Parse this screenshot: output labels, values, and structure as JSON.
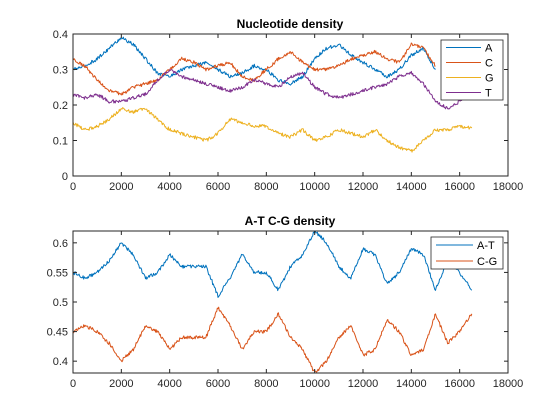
{
  "chart_data": [
    {
      "type": "line",
      "title": "Nucleotide density",
      "xlabel": "",
      "ylabel": "",
      "xlim": [
        0,
        18000
      ],
      "ylim": [
        0,
        0.4
      ],
      "xticks": [
        0,
        2000,
        4000,
        6000,
        8000,
        10000,
        12000,
        14000,
        16000,
        18000
      ],
      "yticks": [
        0,
        0.1,
        0.2,
        0.3,
        0.4
      ],
      "xtick_labels": [
        "0",
        "2000",
        "4000",
        "6000",
        "8000",
        "10000",
        "12000",
        "14000",
        "16000",
        "18000"
      ],
      "ytick_labels": [
        "0",
        "0.1",
        "0.2",
        "0.3",
        "0.4"
      ],
      "grid": false,
      "legend": "top-right",
      "x": [
        0,
        500,
        1000,
        1500,
        2000,
        2500,
        3000,
        3500,
        4000,
        4500,
        5000,
        5500,
        6000,
        6500,
        7000,
        7500,
        8000,
        8500,
        9000,
        9500,
        10000,
        10500,
        11000,
        11500,
        12000,
        12500,
        13000,
        13500,
        14000,
        14500,
        15000,
        15500,
        16000,
        16500
      ],
      "series": [
        {
          "name": "A",
          "color": "#0072BD",
          "values": [
            0.3,
            0.31,
            0.33,
            0.36,
            0.39,
            0.37,
            0.33,
            0.29,
            0.28,
            0.3,
            0.31,
            0.32,
            0.3,
            0.28,
            0.29,
            0.31,
            0.3,
            0.27,
            0.26,
            0.28,
            0.33,
            0.36,
            0.37,
            0.34,
            0.32,
            0.3,
            0.28,
            0.3,
            0.34,
            0.36,
            0.3,
            null,
            null,
            null
          ]
        },
        {
          "name": "C",
          "color": "#D95319",
          "values": [
            0.33,
            0.31,
            0.27,
            0.24,
            0.23,
            0.25,
            0.26,
            0.27,
            0.3,
            0.33,
            0.32,
            0.3,
            0.31,
            0.32,
            0.28,
            0.27,
            0.3,
            0.33,
            0.35,
            0.32,
            0.3,
            0.3,
            0.31,
            0.33,
            0.34,
            0.35,
            0.33,
            0.32,
            0.37,
            0.36,
            0.31,
            null,
            null,
            null
          ]
        },
        {
          "name": "G",
          "color": "#EDB120",
          "values": [
            0.15,
            0.13,
            0.14,
            0.16,
            0.19,
            0.18,
            0.19,
            0.16,
            0.13,
            0.12,
            0.11,
            0.1,
            0.12,
            0.16,
            0.15,
            0.14,
            0.14,
            0.12,
            0.11,
            0.13,
            0.1,
            0.11,
            0.13,
            0.12,
            0.11,
            0.13,
            0.1,
            0.08,
            0.07,
            0.1,
            0.13,
            0.13,
            0.14,
            0.135
          ]
        },
        {
          "name": "T",
          "color": "#7E2F8E",
          "values": [
            0.23,
            0.22,
            0.23,
            0.21,
            0.21,
            0.22,
            0.23,
            0.27,
            0.3,
            0.28,
            0.27,
            0.26,
            0.25,
            0.24,
            0.25,
            0.27,
            0.26,
            0.25,
            0.28,
            0.29,
            0.25,
            0.23,
            0.22,
            0.23,
            0.24,
            0.25,
            0.26,
            0.28,
            0.29,
            0.26,
            0.21,
            0.19,
            0.21,
            0.24
          ]
        }
      ]
    },
    {
      "type": "line",
      "title": "A-T C-G density",
      "xlabel": "",
      "ylabel": "",
      "xlim": [
        0,
        18000
      ],
      "ylim": [
        0.38,
        0.62
      ],
      "xticks": [
        0,
        2000,
        4000,
        6000,
        8000,
        10000,
        12000,
        14000,
        16000,
        18000
      ],
      "yticks": [
        0.4,
        0.45,
        0.5,
        0.55,
        0.6
      ],
      "xtick_labels": [
        "0",
        "2000",
        "4000",
        "6000",
        "8000",
        "10000",
        "12000",
        "14000",
        "16000",
        "18000"
      ],
      "ytick_labels": [
        "0.4",
        "0.45",
        "0.5",
        "0.55",
        "0.6"
      ],
      "grid": false,
      "legend": "top-right",
      "x": [
        0,
        500,
        1000,
        1500,
        2000,
        2500,
        3000,
        3500,
        4000,
        4500,
        5000,
        5500,
        6000,
        6500,
        7000,
        7500,
        8000,
        8500,
        9000,
        9500,
        10000,
        10500,
        11000,
        11500,
        12000,
        12500,
        13000,
        13500,
        14000,
        14500,
        15000,
        15500,
        16000,
        16500
      ],
      "series": [
        {
          "name": "A-T",
          "color": "#0072BD",
          "values": [
            0.55,
            0.54,
            0.55,
            0.57,
            0.6,
            0.58,
            0.54,
            0.55,
            0.58,
            0.56,
            0.56,
            0.56,
            0.51,
            0.54,
            0.58,
            0.55,
            0.55,
            0.52,
            0.56,
            0.58,
            0.62,
            0.6,
            0.56,
            0.54,
            0.59,
            0.58,
            0.53,
            0.55,
            0.59,
            0.58,
            0.52,
            0.57,
            0.55,
            0.52
          ]
        },
        {
          "name": "C-G",
          "color": "#D95319",
          "values": [
            0.45,
            0.46,
            0.45,
            0.43,
            0.4,
            0.42,
            0.46,
            0.45,
            0.42,
            0.44,
            0.44,
            0.44,
            0.49,
            0.46,
            0.42,
            0.45,
            0.45,
            0.48,
            0.44,
            0.42,
            0.38,
            0.4,
            0.44,
            0.46,
            0.41,
            0.42,
            0.47,
            0.45,
            0.41,
            0.42,
            0.48,
            0.43,
            0.45,
            0.48
          ]
        }
      ]
    }
  ]
}
